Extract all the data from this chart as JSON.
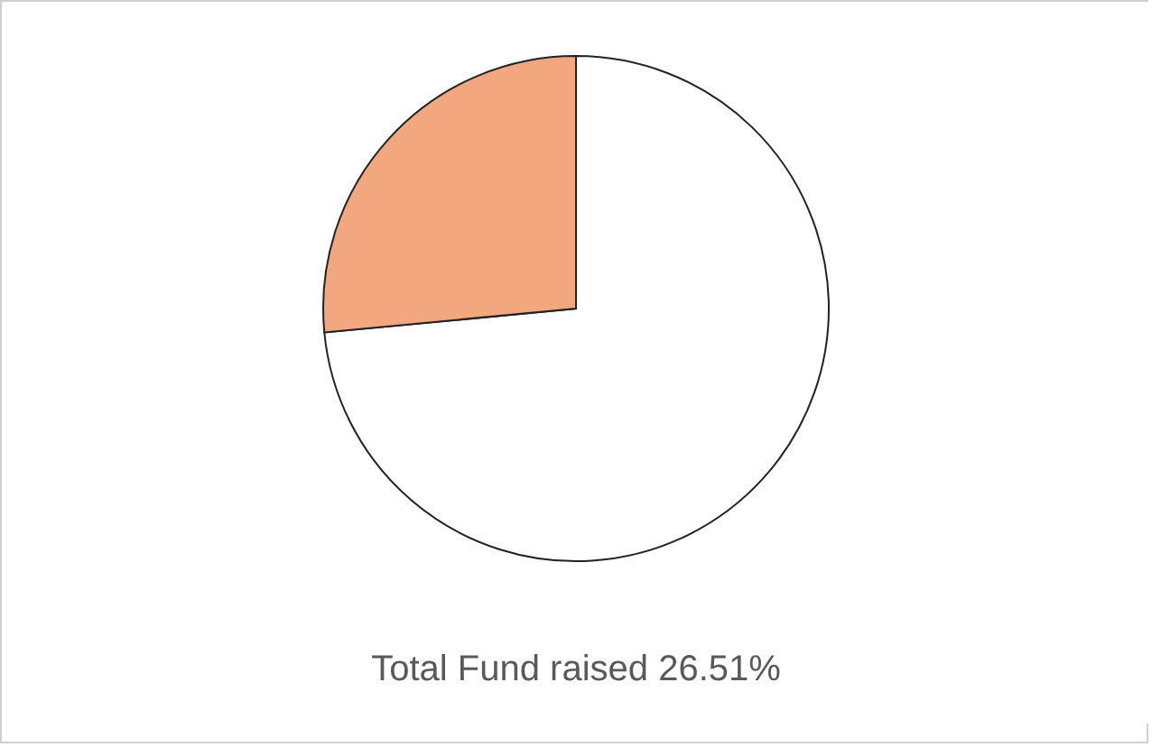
{
  "chart_data": {
    "type": "pie",
    "title": "Total Fund raised 26.51%",
    "categories": [
      null,
      null
    ],
    "values": [
      73.49,
      26.51
    ],
    "colors": [
      "#ffffff",
      "#f2a77e"
    ]
  }
}
